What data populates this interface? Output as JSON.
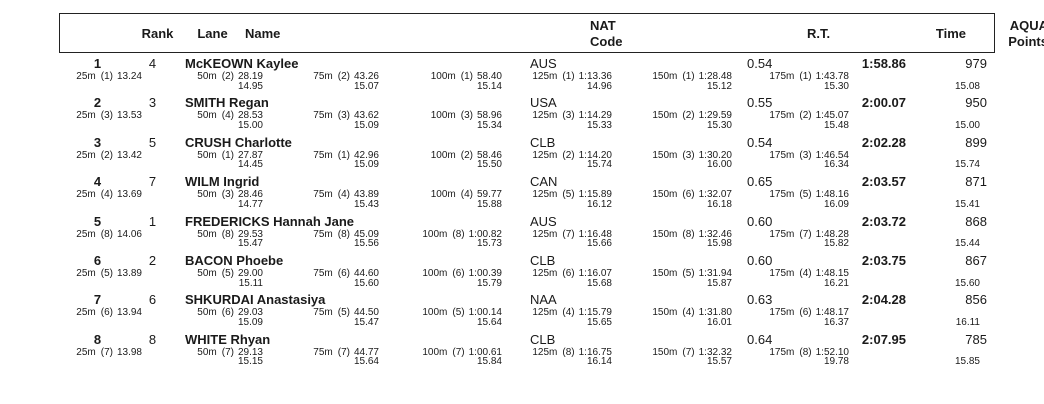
{
  "header": {
    "rank": "Rank",
    "lane": "Lane",
    "name": "Name",
    "nat_line1": "NAT",
    "nat_line2": "Code",
    "rt": "R.T.",
    "time": "Time",
    "aqua_line1": "AQUA",
    "aqua_line2": "Points"
  },
  "rows": [
    {
      "rank": "1",
      "lane": "4",
      "name": "McKEOWN Kaylee",
      "nat": "AUS",
      "rt": "0.54",
      "time": "1:58.86",
      "points": "979",
      "final_lap": "15.08",
      "splits": [
        {
          "label": "25m",
          "pos": "(1)",
          "cum": "13.24",
          "lap": ""
        },
        {
          "label": "50m",
          "pos": "(2)",
          "cum": "28.19",
          "lap": "14.95"
        },
        {
          "label": "75m",
          "pos": "(2)",
          "cum": "43.26",
          "lap": "15.07"
        },
        {
          "label": "100m",
          "pos": "(1)",
          "cum": "58.40",
          "lap": "15.14"
        },
        {
          "label": "125m",
          "pos": "(1)",
          "cum": "1:13.36",
          "lap": "14.96"
        },
        {
          "label": "150m",
          "pos": "(1)",
          "cum": "1:28.48",
          "lap": "15.12"
        },
        {
          "label": "175m",
          "pos": "(1)",
          "cum": "1:43.78",
          "lap": "15.30"
        }
      ]
    },
    {
      "rank": "2",
      "lane": "3",
      "name": "SMITH Regan",
      "nat": "USA",
      "rt": "0.55",
      "time": "2:00.07",
      "points": "950",
      "final_lap": "15.00",
      "splits": [
        {
          "label": "25m",
          "pos": "(3)",
          "cum": "13.53",
          "lap": ""
        },
        {
          "label": "50m",
          "pos": "(4)",
          "cum": "28.53",
          "lap": "15.00"
        },
        {
          "label": "75m",
          "pos": "(3)",
          "cum": "43.62",
          "lap": "15.09"
        },
        {
          "label": "100m",
          "pos": "(3)",
          "cum": "58.96",
          "lap": "15.34"
        },
        {
          "label": "125m",
          "pos": "(3)",
          "cum": "1:14.29",
          "lap": "15.33"
        },
        {
          "label": "150m",
          "pos": "(2)",
          "cum": "1:29.59",
          "lap": "15.30"
        },
        {
          "label": "175m",
          "pos": "(2)",
          "cum": "1:45.07",
          "lap": "15.48"
        }
      ]
    },
    {
      "rank": "3",
      "lane": "5",
      "name": "CRUSH Charlotte",
      "nat": "CLB",
      "rt": "0.54",
      "time": "2:02.28",
      "points": "899",
      "final_lap": "15.74",
      "splits": [
        {
          "label": "25m",
          "pos": "(2)",
          "cum": "13.42",
          "lap": ""
        },
        {
          "label": "50m",
          "pos": "(1)",
          "cum": "27.87",
          "lap": "14.45"
        },
        {
          "label": "75m",
          "pos": "(1)",
          "cum": "42.96",
          "lap": "15.09"
        },
        {
          "label": "100m",
          "pos": "(2)",
          "cum": "58.46",
          "lap": "15.50"
        },
        {
          "label": "125m",
          "pos": "(2)",
          "cum": "1:14.20",
          "lap": "15.74"
        },
        {
          "label": "150m",
          "pos": "(3)",
          "cum": "1:30.20",
          "lap": "16.00"
        },
        {
          "label": "175m",
          "pos": "(3)",
          "cum": "1:46.54",
          "lap": "16.34"
        }
      ]
    },
    {
      "rank": "4",
      "lane": "7",
      "name": "WILM Ingrid",
      "nat": "CAN",
      "rt": "0.65",
      "time": "2:03.57",
      "points": "871",
      "final_lap": "15.41",
      "splits": [
        {
          "label": "25m",
          "pos": "(4)",
          "cum": "13.69",
          "lap": ""
        },
        {
          "label": "50m",
          "pos": "(3)",
          "cum": "28.46",
          "lap": "14.77"
        },
        {
          "label": "75m",
          "pos": "(4)",
          "cum": "43.89",
          "lap": "15.43"
        },
        {
          "label": "100m",
          "pos": "(4)",
          "cum": "59.77",
          "lap": "15.88"
        },
        {
          "label": "125m",
          "pos": "(5)",
          "cum": "1:15.89",
          "lap": "16.12"
        },
        {
          "label": "150m",
          "pos": "(6)",
          "cum": "1:32.07",
          "lap": "16.18"
        },
        {
          "label": "175m",
          "pos": "(5)",
          "cum": "1:48.16",
          "lap": "16.09"
        }
      ]
    },
    {
      "rank": "5",
      "lane": "1",
      "name": "FREDERICKS Hannah Jane",
      "nat": "AUS",
      "rt": "0.60",
      "time": "2:03.72",
      "points": "868",
      "final_lap": "15.44",
      "splits": [
        {
          "label": "25m",
          "pos": "(8)",
          "cum": "14.06",
          "lap": ""
        },
        {
          "label": "50m",
          "pos": "(8)",
          "cum": "29.53",
          "lap": "15.47"
        },
        {
          "label": "75m",
          "pos": "(8)",
          "cum": "45.09",
          "lap": "15.56"
        },
        {
          "label": "100m",
          "pos": "(8)",
          "cum": "1:00.82",
          "lap": "15.73"
        },
        {
          "label": "125m",
          "pos": "(7)",
          "cum": "1:16.48",
          "lap": "15.66"
        },
        {
          "label": "150m",
          "pos": "(8)",
          "cum": "1:32.46",
          "lap": "15.98"
        },
        {
          "label": "175m",
          "pos": "(7)",
          "cum": "1:48.28",
          "lap": "15.82"
        }
      ]
    },
    {
      "rank": "6",
      "lane": "2",
      "name": "BACON Phoebe",
      "nat": "CLB",
      "rt": "0.60",
      "time": "2:03.75",
      "points": "867",
      "final_lap": "15.60",
      "splits": [
        {
          "label": "25m",
          "pos": "(5)",
          "cum": "13.89",
          "lap": ""
        },
        {
          "label": "50m",
          "pos": "(5)",
          "cum": "29.00",
          "lap": "15.11"
        },
        {
          "label": "75m",
          "pos": "(6)",
          "cum": "44.60",
          "lap": "15.60"
        },
        {
          "label": "100m",
          "pos": "(6)",
          "cum": "1:00.39",
          "lap": "15.79"
        },
        {
          "label": "125m",
          "pos": "(6)",
          "cum": "1:16.07",
          "lap": "15.68"
        },
        {
          "label": "150m",
          "pos": "(5)",
          "cum": "1:31.94",
          "lap": "15.87"
        },
        {
          "label": "175m",
          "pos": "(4)",
          "cum": "1:48.15",
          "lap": "16.21"
        }
      ]
    },
    {
      "rank": "7",
      "lane": "6",
      "name": "SHKURDAI Anastasiya",
      "nat": "NAA",
      "rt": "0.63",
      "time": "2:04.28",
      "points": "856",
      "final_lap": "16.11",
      "splits": [
        {
          "label": "25m",
          "pos": "(6)",
          "cum": "13.94",
          "lap": ""
        },
        {
          "label": "50m",
          "pos": "(6)",
          "cum": "29.03",
          "lap": "15.09"
        },
        {
          "label": "75m",
          "pos": "(5)",
          "cum": "44.50",
          "lap": "15.47"
        },
        {
          "label": "100m",
          "pos": "(5)",
          "cum": "1:00.14",
          "lap": "15.64"
        },
        {
          "label": "125m",
          "pos": "(4)",
          "cum": "1:15.79",
          "lap": "15.65"
        },
        {
          "label": "150m",
          "pos": "(4)",
          "cum": "1:31.80",
          "lap": "16.01"
        },
        {
          "label": "175m",
          "pos": "(6)",
          "cum": "1:48.17",
          "lap": "16.37"
        }
      ]
    },
    {
      "rank": "8",
      "lane": "8",
      "name": "WHITE Rhyan",
      "nat": "CLB",
      "rt": "0.64",
      "time": "2:07.95",
      "points": "785",
      "final_lap": "15.85",
      "splits": [
        {
          "label": "25m",
          "pos": "(7)",
          "cum": "13.98",
          "lap": ""
        },
        {
          "label": "50m",
          "pos": "(7)",
          "cum": "29.13",
          "lap": "15.15"
        },
        {
          "label": "75m",
          "pos": "(7)",
          "cum": "44.77",
          "lap": "15.64"
        },
        {
          "label": "100m",
          "pos": "(7)",
          "cum": "1:00.61",
          "lap": "15.84"
        },
        {
          "label": "125m",
          "pos": "(8)",
          "cum": "1:16.75",
          "lap": "16.14"
        },
        {
          "label": "150m",
          "pos": "(7)",
          "cum": "1:32.32",
          "lap": "15.57"
        },
        {
          "label": "175m",
          "pos": "(8)",
          "cum": "1:52.10",
          "lap": "19.78"
        }
      ]
    }
  ]
}
